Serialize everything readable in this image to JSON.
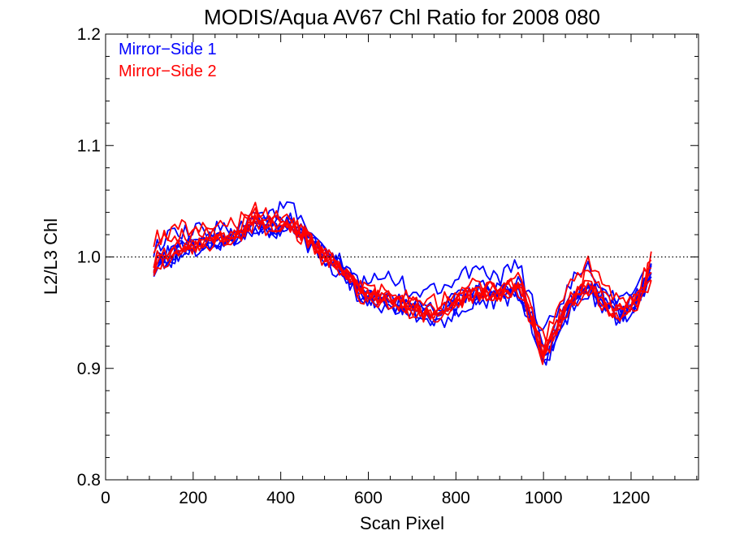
{
  "chart_data": {
    "type": "line",
    "title": "MODIS/Aqua AV67 Chl Ratio for 2008 080",
    "xlabel": "Scan Pixel",
    "ylabel": "L2/L3 Chl",
    "xlim": [
      0,
      1354
    ],
    "ylim": [
      0.8,
      1.2
    ],
    "x_ticks": [
      0,
      200,
      400,
      600,
      800,
      1000,
      1200
    ],
    "x_tick_labels": [
      "0",
      "200",
      "400",
      "600",
      "800",
      "1000",
      "1200"
    ],
    "y_ticks": [
      0.8,
      0.9,
      1.0,
      1.1,
      1.2
    ],
    "y_tick_labels": [
      "0.8",
      "0.9",
      "1.0",
      "1.1",
      "1.2"
    ],
    "reference_line": {
      "y": 1.0,
      "style": "dotted"
    },
    "legend": {
      "placement": "top-left",
      "entries": [
        {
          "label": "Mirror−Side 1",
          "color": "#0000ff"
        },
        {
          "label": "Mirror−Side 2",
          "color": "#ff0000"
        }
      ]
    },
    "x": [
      110,
      150,
      200,
      250,
      300,
      340,
      380,
      420,
      460,
      500,
      540,
      580,
      620,
      660,
      700,
      740,
      780,
      820,
      860,
      900,
      940,
      980,
      1000,
      1020,
      1060,
      1100,
      1140,
      1180,
      1220,
      1250
    ],
    "baseline": [
      0.995,
      1.002,
      1.01,
      1.015,
      1.018,
      1.03,
      1.025,
      1.03,
      1.015,
      1.0,
      0.99,
      0.97,
      0.965,
      0.962,
      0.955,
      0.95,
      0.955,
      0.965,
      0.97,
      0.968,
      0.975,
      0.94,
      0.915,
      0.93,
      0.96,
      0.975,
      0.96,
      0.95,
      0.965,
      0.99
    ],
    "series": [
      {
        "mirror_side": 1,
        "color": "#0000ff",
        "values": [
          0.992,
          1.0,
          1.008,
          1.013,
          1.017,
          1.025,
          1.022,
          1.03,
          1.016,
          0.999,
          0.988,
          0.965,
          0.962,
          0.958,
          0.953,
          0.947,
          0.952,
          0.966,
          0.968,
          0.97,
          0.972,
          0.938,
          0.91,
          0.925,
          0.958,
          0.974,
          0.958,
          0.948,
          0.962,
          0.992
        ]
      },
      {
        "mirror_side": 1,
        "color": "#0000ff",
        "values": [
          0.998,
          1.004,
          1.012,
          1.017,
          1.02,
          1.033,
          1.028,
          1.036,
          1.018,
          1.002,
          0.992,
          0.972,
          0.968,
          0.965,
          0.957,
          0.952,
          0.958,
          0.967,
          0.972,
          0.966,
          0.978,
          0.943,
          0.918,
          0.932,
          0.962,
          0.978,
          0.962,
          0.952,
          0.968,
          0.995
        ]
      },
      {
        "mirror_side": 1,
        "color": "#0000ff",
        "values": [
          0.99,
          0.998,
          1.006,
          1.012,
          1.015,
          1.028,
          1.02,
          1.026,
          1.012,
          0.997,
          0.986,
          0.968,
          0.96,
          0.955,
          0.95,
          0.944,
          0.948,
          0.962,
          0.966,
          0.964,
          0.97,
          0.935,
          0.906,
          0.922,
          0.955,
          0.97,
          0.955,
          0.945,
          0.96,
          0.988
        ]
      },
      {
        "mirror_side": 1,
        "color": "#0000ff",
        "values": [
          1.008,
          1.018,
          1.022,
          1.025,
          1.026,
          1.04,
          1.038,
          1.048,
          1.022,
          1.004,
          0.994,
          0.975,
          0.982,
          0.98,
          0.97,
          0.968,
          0.978,
          0.985,
          0.984,
          0.98,
          0.996,
          0.952,
          0.93,
          0.945,
          0.975,
          0.99,
          0.97,
          0.958,
          0.975,
          1.0
        ]
      },
      {
        "mirror_side": 1,
        "color": "#0000ff",
        "values": [
          0.995,
          1.003,
          1.01,
          1.014,
          1.016,
          1.027,
          1.024,
          1.029,
          1.014,
          1.0,
          0.988,
          0.962,
          0.958,
          0.956,
          0.949,
          0.94,
          0.945,
          0.958,
          0.962,
          0.96,
          0.968,
          0.932,
          0.9,
          0.918,
          0.952,
          0.968,
          0.953,
          0.943,
          0.958,
          0.986
        ]
      },
      {
        "mirror_side": 1,
        "color": "#0000ff",
        "values": [
          0.993,
          1.001,
          1.009,
          1.016,
          1.019,
          1.031,
          1.026,
          1.032,
          1.017,
          1.001,
          0.991,
          0.97,
          0.966,
          0.963,
          0.956,
          0.951,
          0.956,
          0.964,
          0.971,
          0.969,
          0.976,
          0.941,
          0.914,
          0.929,
          0.961,
          0.976,
          0.96,
          0.95,
          0.966,
          0.993
        ]
      },
      {
        "mirror_side": 2,
        "color": "#ff0000",
        "values": [
          0.994,
          1.003,
          1.011,
          1.016,
          1.019,
          1.032,
          1.027,
          1.031,
          1.016,
          1.001,
          0.989,
          0.968,
          0.964,
          0.961,
          0.954,
          0.949,
          0.954,
          0.966,
          0.969,
          0.967,
          0.974,
          0.94,
          0.912,
          0.928,
          0.96,
          0.976,
          0.959,
          0.949,
          0.966,
          0.991
        ]
      },
      {
        "mirror_side": 2,
        "color": "#ff0000",
        "values": [
          1.016,
          1.024,
          1.028,
          1.031,
          1.03,
          1.046,
          1.036,
          1.036,
          1.02,
          1.003,
          0.99,
          0.972,
          0.97,
          0.968,
          0.962,
          0.958,
          0.963,
          0.972,
          0.976,
          0.972,
          0.98,
          0.946,
          0.925,
          0.94,
          0.972,
          0.994,
          0.975,
          0.96,
          0.972,
          1.005
        ]
      },
      {
        "mirror_side": 2,
        "color": "#ff0000",
        "values": [
          0.99,
          0.999,
          1.008,
          1.013,
          1.016,
          1.028,
          1.022,
          1.028,
          1.013,
          0.998,
          0.987,
          0.965,
          0.961,
          0.958,
          0.951,
          0.946,
          0.951,
          0.963,
          0.967,
          0.965,
          0.971,
          0.937,
          0.908,
          0.924,
          0.957,
          0.972,
          0.956,
          0.946,
          0.962,
          0.989
        ]
      },
      {
        "mirror_side": 2,
        "color": "#ff0000",
        "values": [
          0.997,
          1.005,
          1.013,
          1.018,
          1.021,
          1.035,
          1.029,
          1.033,
          1.018,
          1.002,
          0.991,
          0.971,
          0.967,
          0.964,
          0.957,
          0.952,
          0.957,
          0.968,
          0.972,
          0.97,
          0.977,
          0.943,
          0.916,
          0.931,
          0.963,
          0.978,
          0.961,
          0.951,
          0.967,
          0.994
        ]
      },
      {
        "mirror_side": 2,
        "color": "#ff0000",
        "values": [
          1.01,
          1.015,
          1.02,
          1.022,
          1.024,
          1.038,
          1.03,
          1.032,
          1.017,
          1.0,
          0.989,
          0.969,
          0.965,
          0.962,
          0.955,
          0.95,
          0.956,
          0.966,
          0.97,
          0.968,
          0.975,
          0.941,
          0.913,
          0.93,
          0.962,
          0.985,
          0.962,
          0.952,
          0.965,
          0.975
        ]
      },
      {
        "mirror_side": 2,
        "color": "#ff0000",
        "values": [
          0.992,
          1.0,
          1.009,
          1.014,
          1.017,
          1.03,
          1.024,
          1.029,
          1.015,
          0.999,
          0.988,
          0.966,
          0.963,
          0.959,
          0.952,
          0.947,
          0.953,
          0.964,
          0.968,
          0.966,
          0.973,
          0.938,
          0.91,
          0.926,
          0.958,
          0.974,
          0.957,
          0.947,
          0.964,
          1.008
        ]
      }
    ]
  }
}
